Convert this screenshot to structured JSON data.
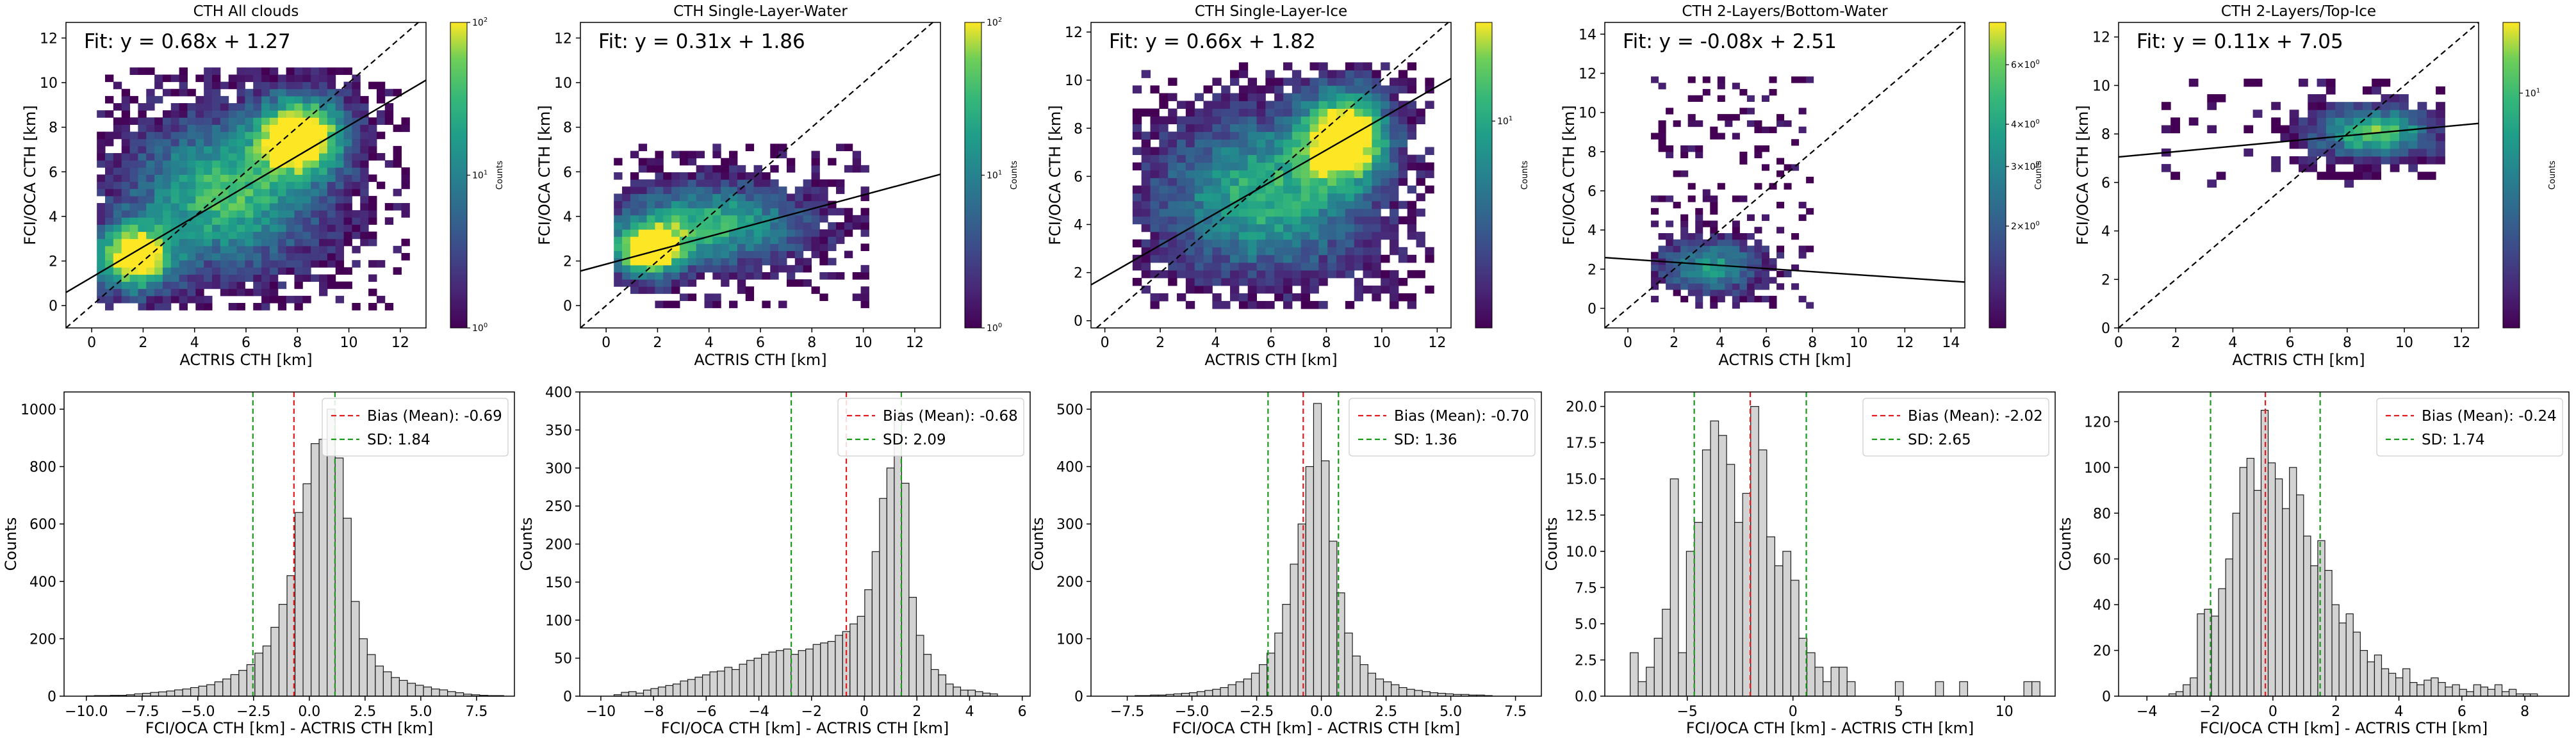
{
  "figure": {
    "colorbar_label": "Counts",
    "hist_ylabel": "Counts",
    "hist_xlabel": "FCI/OCA CTH [km] - ACTRIS CTH [km]",
    "scatter_xlabel": "ACTRIS CTH [km]",
    "scatter_ylabel": "FCI/OCA CTH [km]"
  },
  "chart_data": [
    {
      "type": "heatmap",
      "title": "CTH All clouds",
      "fit_text": "Fit: y = 0.68x + 1.27",
      "fit": {
        "slope": 0.68,
        "intercept": 1.27
      },
      "xlabel": "ACTRIS CTH [km]",
      "ylabel": "FCI/OCA CTH [km]",
      "xlim": [
        -1,
        13
      ],
      "ylim": [
        -1,
        12.7
      ],
      "xticks": [
        0,
        2,
        4,
        6,
        8,
        10,
        12
      ],
      "yticks": [
        0,
        2,
        4,
        6,
        8,
        10,
        12
      ],
      "one_to_one_line": true,
      "colorbar": {
        "scale": "log",
        "min": 1,
        "max": 100,
        "ticks": [
          "10^0",
          "10^1",
          "10^2"
        ],
        "label": "Counts"
      },
      "density_clusters": [
        [
          1.5,
          2.0,
          1.0,
          1.0,
          2.0
        ],
        [
          8.0,
          7.5,
          1.2,
          1.2,
          2.0
        ],
        [
          5.0,
          4.8,
          2.5,
          2.2,
          1.3
        ]
      ],
      "data_extent": {
        "x": [
          0.2,
          12.2
        ],
        "y": [
          -0.2,
          10.5
        ]
      }
    },
    {
      "type": "heatmap",
      "title": "CTH Single-Layer-Water",
      "fit_text": "Fit: y = 0.31x + 1.86",
      "fit": {
        "slope": 0.31,
        "intercept": 1.86
      },
      "xlabel": "ACTRIS CTH [km]",
      "ylabel": "FCI/OCA CTH [km]",
      "xlim": [
        -1,
        13
      ],
      "ylim": [
        -1,
        12.7
      ],
      "xticks": [
        0,
        2,
        4,
        6,
        8,
        10,
        12
      ],
      "yticks": [
        0,
        2,
        4,
        6,
        8,
        10,
        12
      ],
      "one_to_one_line": true,
      "colorbar": {
        "scale": "log",
        "min": 1,
        "max": 100,
        "ticks": [
          "10^0",
          "10^1",
          "10^2"
        ],
        "label": "Counts"
      },
      "density_clusters": [
        [
          1.5,
          2.3,
          0.9,
          0.8,
          2.0
        ],
        [
          4.0,
          3.5,
          2.5,
          1.2,
          1.2
        ]
      ],
      "data_extent": {
        "x": [
          0.3,
          10.2
        ],
        "y": [
          -0.1,
          7.2
        ]
      }
    },
    {
      "type": "heatmap",
      "title": "CTH Single-Layer-Ice",
      "fit_text": "Fit: y = 0.66x + 1.82",
      "fit": {
        "slope": 0.66,
        "intercept": 1.82
      },
      "xlabel": "ACTRIS CTH [km]",
      "ylabel": "FCI/OCA CTH [km]",
      "xlim": [
        -0.5,
        12.5
      ],
      "ylim": [
        -0.3,
        12.4
      ],
      "xticks": [
        0,
        2,
        4,
        6,
        8,
        10,
        12
      ],
      "yticks": [
        0,
        2,
        4,
        6,
        8,
        10,
        12
      ],
      "one_to_one_line": true,
      "colorbar": {
        "scale": "log",
        "min": 1,
        "max": 30,
        "ticks": [
          "10^1"
        ],
        "label": "Counts"
      },
      "density_clusters": [
        [
          8.5,
          7.5,
          1.1,
          1.3,
          2.0
        ],
        [
          5.5,
          5.0,
          2.5,
          2.2,
          1.2
        ]
      ],
      "data_extent": {
        "x": [
          1.0,
          11.8
        ],
        "y": [
          0.5,
          10.5
        ]
      }
    },
    {
      "type": "heatmap",
      "title": "CTH 2-Layers/Bottom-Water",
      "fit_text": "Fit: y = -0.08x + 2.51",
      "fit": {
        "slope": -0.08,
        "intercept": 2.51
      },
      "xlabel": "ACTRIS CTH [km]",
      "ylabel": "FCI/OCA CTH [km]",
      "xlim": [
        -1,
        14.6
      ],
      "ylim": [
        -1,
        14.6
      ],
      "xticks": [
        0,
        2,
        4,
        6,
        8,
        10,
        12,
        14
      ],
      "yticks": [
        0,
        2,
        4,
        6,
        8,
        10,
        12,
        14
      ],
      "one_to_one_line": true,
      "colorbar": {
        "scale": "log",
        "min": 1,
        "max": 8,
        "ticks": [
          "2×10^0",
          "3×10^0",
          "4×10^0",
          "6×10^0"
        ],
        "label": "Counts"
      },
      "density_clusters": [
        [
          3.5,
          2.0,
          1.5,
          0.9,
          1.0
        ]
      ],
      "data_extent": {
        "x": [
          1.0,
          8.0
        ],
        "y": [
          0.0,
          11.8
        ]
      }
    },
    {
      "type": "heatmap",
      "title": "CTH 2-Layers/Top-Ice",
      "fit_text": "Fit: y = 0.11x + 7.05",
      "fit": {
        "slope": 0.11,
        "intercept": 7.05
      },
      "xlabel": "ACTRIS CTH [km]",
      "ylabel": "FCI/OCA CTH [km]",
      "xlim": [
        0,
        12.6
      ],
      "ylim": [
        0,
        12.6
      ],
      "xticks": [
        0,
        2,
        4,
        6,
        8,
        10,
        12
      ],
      "yticks": [
        0,
        2,
        4,
        6,
        8,
        10,
        12
      ],
      "one_to_one_line": true,
      "colorbar": {
        "scale": "log",
        "min": 1,
        "max": 20,
        "ticks": [
          "10^1"
        ],
        "label": "Counts"
      },
      "density_clusters": [
        [
          8.8,
          7.9,
          1.4,
          0.7,
          1.4
        ]
      ],
      "data_extent": {
        "x": [
          1.5,
          11.2
        ],
        "y": [
          5.8,
          10.0
        ]
      }
    },
    {
      "type": "bar",
      "title": "",
      "xlabel": "FCI/OCA CTH [km] - ACTRIS CTH [km]",
      "ylabel": "Counts",
      "xlim": [
        -11,
        9.2
      ],
      "ylim": [
        0,
        1060
      ],
      "xticks": [
        -10.0,
        -7.5,
        -5.0,
        -2.5,
        0.0,
        2.5,
        5.0,
        7.5
      ],
      "xtick_labels": [
        "−10.0",
        "−7.5",
        "−5.0",
        "−2.5",
        "0.0",
        "2.5",
        "5.0",
        "7.5"
      ],
      "yticks": [
        0,
        200,
        400,
        600,
        800,
        1000
      ],
      "bins": {
        "start": -10.0,
        "width": 0.36
      },
      "values": [
        1,
        2,
        2,
        3,
        3,
        5,
        8,
        10,
        13,
        15,
        18,
        22,
        25,
        30,
        35,
        40,
        50,
        60,
        75,
        90,
        110,
        150,
        175,
        240,
        320,
        420,
        640,
        740,
        880,
        895,
        1000,
        830,
        620,
        330,
        200,
        145,
        105,
        85,
        65,
        55,
        45,
        38,
        32,
        25,
        22,
        16,
        12,
        7,
        5,
        3,
        2,
        2
      ],
      "bias": -0.69,
      "sd": 1.84,
      "legend": [
        "Bias (Mean): -0.69",
        "SD: 1.84"
      ]
    },
    {
      "type": "bar",
      "title": "",
      "xlabel": "FCI/OCA CTH [km] - ACTRIS CTH [km]",
      "ylabel": "Counts",
      "xlim": [
        -10.8,
        6.3
      ],
      "ylim": [
        0,
        400
      ],
      "xticks": [
        -10,
        -8,
        -6,
        -4,
        -2,
        0,
        2,
        4,
        6
      ],
      "xtick_labels": [
        "−10",
        "−8",
        "−6",
        "−4",
        "−2",
        "0",
        "2",
        "4",
        "6"
      ],
      "yticks": [
        0,
        50,
        100,
        150,
        200,
        250,
        300,
        350,
        400
      ],
      "bins": {
        "start": -9.5,
        "width": 0.28
      },
      "values": [
        2,
        5,
        6,
        4,
        8,
        10,
        12,
        14,
        16,
        20,
        22,
        25,
        28,
        32,
        33,
        38,
        35,
        42,
        47,
        50,
        55,
        58,
        60,
        62,
        55,
        60,
        62,
        68,
        70,
        72,
        80,
        85,
        95,
        105,
        140,
        190,
        260,
        300,
        370,
        280,
        130,
        80,
        55,
        35,
        28,
        16,
        12,
        8,
        8,
        6,
        4,
        3
      ],
      "bias": -0.68,
      "sd": 2.09,
      "legend": [
        "Bias (Mean): -0.68",
        "SD: 2.09"
      ]
    },
    {
      "type": "bar",
      "title": "",
      "xlabel": "FCI/OCA CTH [km] - ACTRIS CTH [km]",
      "ylabel": "Counts",
      "xlim": [
        -8.9,
        8.5
      ],
      "ylim": [
        0,
        530
      ],
      "xticks": [
        -7.5,
        -5.0,
        -2.5,
        0.0,
        2.5,
        5.0,
        7.5
      ],
      "xtick_labels": [
        "−7.5",
        "−5.0",
        "−2.5",
        "0.0",
        "2.5",
        "5.0",
        "7.5"
      ],
      "yticks": [
        0,
        100,
        200,
        300,
        400,
        500
      ],
      "bins": {
        "start": -7.2,
        "width": 0.3
      },
      "values": [
        1,
        1,
        2,
        2,
        3,
        4,
        5,
        6,
        8,
        10,
        12,
        15,
        20,
        25,
        30,
        40,
        55,
        75,
        110,
        160,
        230,
        300,
        400,
        510,
        410,
        270,
        180,
        110,
        70,
        55,
        40,
        30,
        25,
        20,
        15,
        12,
        10,
        8,
        6,
        5,
        4,
        3,
        3,
        2,
        2,
        1
      ],
      "bias": -0.7,
      "sd": 1.36,
      "legend": [
        "Bias (Mean): -0.70",
        "SD: 1.36"
      ]
    },
    {
      "type": "bar",
      "title": "",
      "xlabel": "FCI/OCA CTH [km] - ACTRIS CTH [km]",
      "ylabel": "Counts",
      "xlim": [
        -8.9,
        12.4
      ],
      "ylim": [
        0,
        21
      ],
      "xticks": [
        -5,
        0,
        5,
        10
      ],
      "xtick_labels": [
        "−5",
        "0",
        "5",
        "10"
      ],
      "yticks": [
        0.0,
        2.5,
        5.0,
        7.5,
        10.0,
        12.5,
        15.0,
        17.5,
        20.0
      ],
      "bins": {
        "start": -7.7,
        "width": 0.38
      },
      "values": [
        3,
        1,
        2,
        4,
        6,
        15,
        3,
        10,
        12,
        17,
        19,
        18,
        16,
        12,
        14,
        20,
        17,
        11,
        9,
        10,
        8,
        4,
        3,
        2,
        1,
        2,
        2,
        1,
        0,
        0,
        0,
        0,
        0,
        1,
        0,
        0,
        0,
        0,
        1,
        0,
        0,
        1,
        0,
        0,
        0,
        0,
        0,
        0,
        0,
        1,
        1
      ],
      "bias": -2.02,
      "sd": 2.65,
      "legend": [
        "Bias (Mean): -2.02",
        "SD: 2.65"
      ]
    },
    {
      "type": "bar",
      "title": "",
      "xlabel": "FCI/OCA CTH [km] - ACTRIS CTH [km]",
      "ylabel": "Counts",
      "xlim": [
        -4.9,
        9.4
      ],
      "ylim": [
        0,
        133
      ],
      "xticks": [
        -4,
        -2,
        0,
        2,
        4,
        6,
        8
      ],
      "xtick_labels": [
        "−4",
        "−2",
        "0",
        "2",
        "4",
        "6",
        "8"
      ],
      "yticks": [
        0,
        20,
        40,
        60,
        80,
        100,
        120
      ],
      "bins": {
        "start": -3.3,
        "width": 0.225
      },
      "values": [
        1,
        2,
        5,
        8,
        36,
        38,
        35,
        47,
        60,
        80,
        100,
        104,
        90,
        125,
        102,
        95,
        82,
        100,
        88,
        70,
        57,
        68,
        55,
        40,
        32,
        36,
        28,
        20,
        15,
        18,
        12,
        10,
        8,
        12,
        6,
        5,
        7,
        8,
        6,
        4,
        5,
        3,
        2,
        5,
        4,
        3,
        5,
        2,
        3,
        1,
        1,
        1
      ],
      "bias": -0.24,
      "sd": 1.74,
      "legend": [
        "Bias (Mean): -0.24",
        "SD: 1.74"
      ]
    }
  ]
}
